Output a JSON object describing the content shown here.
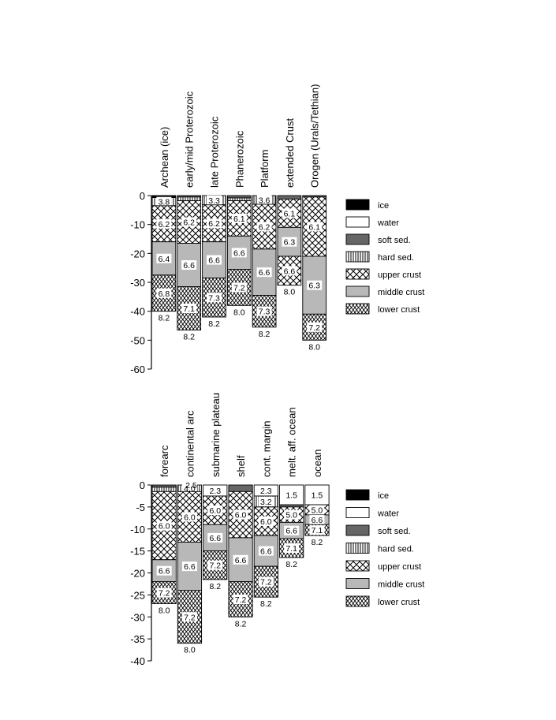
{
  "chart_data": [
    {
      "type": "bar",
      "stacked": true,
      "title": "",
      "xlabel": "",
      "ylabel": "",
      "ylim": [
        -60,
        0
      ],
      "yticks": [
        0,
        -10,
        -20,
        -30,
        -40,
        -50,
        -60
      ],
      "grid": false,
      "categories": [
        "Archean (ice)",
        "early/mid Proterozoic",
        "late Proterozoic",
        "Phanerozoic",
        "Platform",
        "extended Crust",
        "Orogen (Urals/Tethian)"
      ],
      "columns": [
        {
          "layers": [
            {
              "type": "ice",
              "top": 0,
              "bottom": -0.7
            },
            {
              "type": "hard sed.",
              "top": -0.7,
              "bottom": -3.5,
              "label": "3.8"
            },
            {
              "type": "upper crust",
              "top": -3.5,
              "bottom": -16,
              "label": "6.2"
            },
            {
              "type": "middle crust",
              "top": -16,
              "bottom": -27.5,
              "label": "6.4"
            },
            {
              "type": "lower crust",
              "top": -27.5,
              "bottom": -40,
              "label": "6.8"
            }
          ],
          "mantle_velocity": "8.2"
        },
        {
          "layers": [
            {
              "type": "soft sed.",
              "top": 0,
              "bottom": -0.5
            },
            {
              "type": "hard sed.",
              "top": -0.5,
              "bottom": -1.8
            },
            {
              "type": "upper crust",
              "top": -1.8,
              "bottom": -16.5,
              "label": "6.2"
            },
            {
              "type": "middle crust",
              "top": -16.5,
              "bottom": -31.5,
              "label": "6.6"
            },
            {
              "type": "lower crust",
              "top": -31.5,
              "bottom": -46.5,
              "label": "7.1"
            }
          ],
          "mantle_velocity": "8.2"
        },
        {
          "layers": [
            {
              "type": "hard sed.",
              "top": 0,
              "bottom": -3.2,
              "label": "3.3"
            },
            {
              "type": "upper crust",
              "top": -3.2,
              "bottom": -16,
              "label": "6.2"
            },
            {
              "type": "middle crust",
              "top": -16,
              "bottom": -28.5,
              "label": "6.6"
            },
            {
              "type": "lower crust",
              "top": -28.5,
              "bottom": -42,
              "label": "7.3"
            }
          ],
          "mantle_velocity": "8.2"
        },
        {
          "layers": [
            {
              "type": "soft sed.",
              "top": 0,
              "bottom": -0.8
            },
            {
              "type": "hard sed.",
              "top": -0.8,
              "bottom": -1.8
            },
            {
              "type": "upper crust",
              "top": -1.8,
              "bottom": -14,
              "label": "6.1"
            },
            {
              "type": "middle crust",
              "top": -14,
              "bottom": -25.5,
              "label": "6.6"
            },
            {
              "type": "lower crust",
              "top": -25.5,
              "bottom": -38,
              "label": "7.2"
            }
          ],
          "mantle_velocity": "8.0"
        },
        {
          "layers": [
            {
              "type": "hard sed.",
              "top": 0,
              "bottom": -3,
              "label": "3.6"
            },
            {
              "type": "upper crust",
              "top": -3,
              "bottom": -18.5,
              "label": "6.2"
            },
            {
              "type": "middle crust",
              "top": -18.5,
              "bottom": -34.5,
              "label": "6.6"
            },
            {
              "type": "lower crust",
              "top": -34.5,
              "bottom": -45.5,
              "label": "7.3"
            }
          ],
          "mantle_velocity": "8.2"
        },
        {
          "layers": [
            {
              "type": "soft sed.",
              "top": 0,
              "bottom": -1.2
            },
            {
              "type": "upper crust",
              "top": -1.2,
              "bottom": -11,
              "label": "6.1"
            },
            {
              "type": "middle crust",
              "top": -11,
              "bottom": -21,
              "label": "6.3"
            },
            {
              "type": "upper crust",
              "top": -21,
              "bottom": -31,
              "label": "6.6"
            }
          ],
          "mantle_velocity": "8.0"
        },
        {
          "layers": [
            {
              "type": "soft sed.",
              "top": 0,
              "bottom": -0.5
            },
            {
              "type": "upper crust",
              "top": -0.5,
              "bottom": -21,
              "label": "6.1"
            },
            {
              "type": "middle crust",
              "top": -21,
              "bottom": -41,
              "label": "6.3"
            },
            {
              "type": "lower crust",
              "top": -41,
              "bottom": -50,
              "label": "7.2"
            }
          ],
          "mantle_velocity": "8.0"
        }
      ]
    },
    {
      "type": "bar",
      "stacked": true,
      "title": "",
      "xlabel": "",
      "ylabel": "",
      "ylim": [
        -40,
        0
      ],
      "yticks": [
        0,
        -5,
        -10,
        -15,
        -20,
        -25,
        -30,
        -35,
        -40
      ],
      "grid": false,
      "categories": [
        "forearc",
        "continental arc",
        "submarine plateau",
        "shelf",
        "cont. margin",
        "melt. aff. ocean",
        "ocean"
      ],
      "columns": [
        {
          "layers": [
            {
              "type": "soft sed.",
              "top": 0,
              "bottom": -0.5
            },
            {
              "type": "hard sed.",
              "top": -0.5,
              "bottom": -1.5
            },
            {
              "type": "upper crust",
              "top": -1.5,
              "bottom": -17,
              "label": "6.0"
            },
            {
              "type": "middle crust",
              "top": -17,
              "bottom": -22,
              "label": "6.6"
            },
            {
              "type": "lower crust",
              "top": -22,
              "bottom": -27,
              "label": "7.2"
            }
          ],
          "mantle_velocity": "8.0"
        },
        {
          "layers": [
            {
              "type": "hard sed.",
              "top": 0,
              "bottom": -1.5,
              "label": "4.0"
            },
            {
              "type": "upper crust",
              "top": -1.5,
              "bottom": -13,
              "label": "6.0"
            },
            {
              "type": "middle crust",
              "top": -13,
              "bottom": -24,
              "label": "6.6"
            },
            {
              "type": "lower crust",
              "top": -24,
              "bottom": -36,
              "label": "7.2"
            }
          ],
          "mantle_velocity": "8.0",
          "top_label": "2.5"
        },
        {
          "layers": [
            {
              "type": "water",
              "top": 0,
              "bottom": -2.5,
              "label": "2.3"
            },
            {
              "type": "upper crust",
              "top": -2.5,
              "bottom": -9,
              "label": "6.0"
            },
            {
              "type": "middle crust",
              "top": -9,
              "bottom": -15,
              "label": "6.6"
            },
            {
              "type": "lower crust",
              "top": -15,
              "bottom": -21.5,
              "label": "7.2"
            }
          ],
          "mantle_velocity": "8.2"
        },
        {
          "layers": [
            {
              "type": "soft sed.",
              "top": 0,
              "bottom": -1.5
            },
            {
              "type": "upper crust",
              "top": -1.5,
              "bottom": -12,
              "label": "6.0"
            },
            {
              "type": "middle crust",
              "top": -12,
              "bottom": -22,
              "label": "6.6"
            },
            {
              "type": "lower crust",
              "top": -22,
              "bottom": -30,
              "label": "7.2"
            }
          ],
          "mantle_velocity": "8.2"
        },
        {
          "layers": [
            {
              "type": "water",
              "top": 0,
              "bottom": -2.5,
              "label": "2.3"
            },
            {
              "type": "hard sed.",
              "top": -2.5,
              "bottom": -5,
              "label": "3.2"
            },
            {
              "type": "upper crust",
              "top": -5,
              "bottom": -11.5,
              "label": "6.0"
            },
            {
              "type": "middle crust",
              "top": -11.5,
              "bottom": -18.5,
              "label": "6.6"
            },
            {
              "type": "lower crust",
              "top": -18.5,
              "bottom": -25.5,
              "label": "7.2"
            }
          ],
          "mantle_velocity": "8.2"
        },
        {
          "layers": [
            {
              "type": "water",
              "top": 0,
              "bottom": -4.5,
              "label": "1.5"
            },
            {
              "type": "soft sed.",
              "top": -4.5,
              "bottom": -5
            },
            {
              "type": "upper crust",
              "top": -5,
              "bottom": -8.5,
              "label": "5.0"
            },
            {
              "type": "middle crust",
              "top": -8.5,
              "bottom": -12.2,
              "label": "6.6"
            },
            {
              "type": "lower crust",
              "top": -12.2,
              "bottom": -16.5,
              "label": "7.1"
            }
          ],
          "mantle_velocity": "8.2"
        },
        {
          "layers": [
            {
              "type": "water",
              "top": 0,
              "bottom": -4.5,
              "label": "1.5"
            },
            {
              "type": "upper crust",
              "top": -4.5,
              "bottom": -6.8,
              "label": "5.0"
            },
            {
              "type": "middle crust",
              "top": -6.8,
              "bottom": -9,
              "label": "6.6"
            },
            {
              "type": "lower crust",
              "top": -9,
              "bottom": -11.5,
              "label": "7.1"
            }
          ],
          "mantle_velocity": "8.2"
        }
      ]
    }
  ],
  "legend": {
    "placement": "right",
    "items": [
      {
        "type": "ice",
        "label": "ice"
      },
      {
        "type": "water",
        "label": "water"
      },
      {
        "type": "soft sed.",
        "label": "soft sed."
      },
      {
        "type": "hard sed.",
        "label": "hard sed."
      },
      {
        "type": "upper crust",
        "label": "upper crust"
      },
      {
        "type": "middle crust",
        "label": "middle crust"
      },
      {
        "type": "lower crust",
        "label": "lower crust"
      }
    ]
  },
  "layer_colors": {
    "ice": "#000000",
    "water": "#ffffff",
    "soft sed.": "#666666",
    "middle crust": "#b8b8b8"
  }
}
